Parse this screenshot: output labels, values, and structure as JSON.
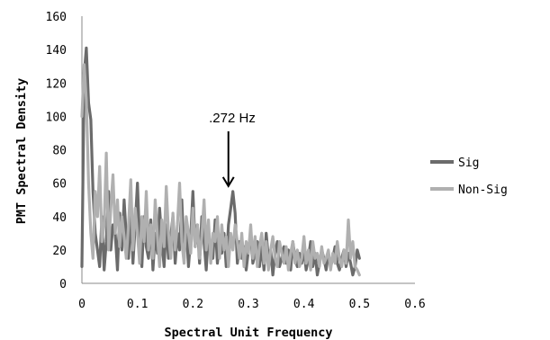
{
  "chart_data": {
    "type": "line",
    "xlabel": "Spectral Unit Frequency",
    "ylabel": "PMT Spectral Density",
    "xlim": [
      0,
      0.6
    ],
    "ylim": [
      0,
      160
    ],
    "x_ticks": [
      "0",
      "0.1",
      "0.2",
      "0.3",
      "0.4",
      "0.5",
      "0.6"
    ],
    "y_ticks": [
      "0",
      "20",
      "40",
      "60",
      "80",
      "100",
      "120",
      "140",
      "160"
    ],
    "grid": false,
    "legend_position": "right",
    "annotation": {
      "text": ".272 Hz",
      "x": 0.272,
      "y": 55
    },
    "series": [
      {
        "name": "Sig",
        "color": "#6b6b6b",
        "x": [
          0,
          0.004,
          0.008,
          0.012,
          0.016,
          0.02,
          0.024,
          0.028,
          0.032,
          0.036,
          0.04,
          0.044,
          0.048,
          0.052,
          0.056,
          0.06,
          0.064,
          0.068,
          0.072,
          0.076,
          0.08,
          0.084,
          0.088,
          0.092,
          0.096,
          0.1,
          0.104,
          0.108,
          0.112,
          0.116,
          0.12,
          0.124,
          0.128,
          0.132,
          0.136,
          0.14,
          0.144,
          0.148,
          0.152,
          0.156,
          0.16,
          0.164,
          0.168,
          0.172,
          0.176,
          0.18,
          0.184,
          0.188,
          0.192,
          0.196,
          0.2,
          0.204,
          0.208,
          0.212,
          0.216,
          0.22,
          0.224,
          0.228,
          0.232,
          0.236,
          0.24,
          0.244,
          0.248,
          0.252,
          0.256,
          0.26,
          0.264,
          0.268,
          0.272,
          0.276,
          0.28,
          0.284,
          0.288,
          0.292,
          0.296,
          0.3,
          0.304,
          0.308,
          0.312,
          0.316,
          0.32,
          0.324,
          0.328,
          0.332,
          0.336,
          0.34,
          0.344,
          0.348,
          0.352,
          0.356,
          0.36,
          0.364,
          0.368,
          0.372,
          0.376,
          0.38,
          0.384,
          0.388,
          0.392,
          0.396,
          0.4,
          0.404,
          0.408,
          0.412,
          0.416,
          0.42,
          0.424,
          0.428,
          0.432,
          0.436,
          0.44,
          0.444,
          0.448,
          0.452,
          0.456,
          0.46,
          0.464,
          0.468,
          0.472,
          0.476,
          0.48,
          0.484,
          0.488,
          0.492,
          0.496,
          0.5
        ],
        "y": [
          10,
          125,
          141,
          108,
          98,
          55,
          30,
          20,
          10,
          40,
          8,
          25,
          55,
          20,
          35,
          30,
          8,
          42,
          20,
          50,
          28,
          15,
          45,
          12,
          35,
          60,
          25,
          10,
          40,
          22,
          15,
          38,
          8,
          30,
          18,
          45,
          25,
          10,
          35,
          15,
          28,
          40,
          12,
          30,
          20,
          50,
          15,
          35,
          10,
          28,
          55,
          22,
          35,
          12,
          40,
          25,
          8,
          30,
          20,
          15,
          38,
          12,
          25,
          18,
          30,
          10,
          35,
          45,
          55,
          42,
          12,
          25,
          15,
          22,
          8,
          20,
          30,
          12,
          18,
          25,
          10,
          22,
          8,
          30,
          15,
          20,
          5,
          18,
          25,
          10,
          15,
          22,
          12,
          20,
          8,
          25,
          15,
          10,
          18,
          12,
          20,
          8,
          15,
          25,
          10,
          18,
          5,
          12,
          20,
          15,
          8,
          18,
          10,
          15,
          22,
          12,
          8,
          15,
          20,
          10,
          18,
          12,
          5,
          10,
          20,
          15
        ]
      },
      {
        "name": "Non-Sig",
        "color": "#b0b0b0",
        "x": [
          0,
          0.004,
          0.008,
          0.012,
          0.016,
          0.02,
          0.024,
          0.028,
          0.032,
          0.036,
          0.04,
          0.044,
          0.048,
          0.052,
          0.056,
          0.06,
          0.064,
          0.068,
          0.072,
          0.076,
          0.08,
          0.084,
          0.088,
          0.092,
          0.096,
          0.1,
          0.104,
          0.108,
          0.112,
          0.116,
          0.12,
          0.124,
          0.128,
          0.132,
          0.136,
          0.14,
          0.144,
          0.148,
          0.152,
          0.156,
          0.16,
          0.164,
          0.168,
          0.172,
          0.176,
          0.18,
          0.184,
          0.188,
          0.192,
          0.196,
          0.2,
          0.204,
          0.208,
          0.212,
          0.216,
          0.22,
          0.224,
          0.228,
          0.232,
          0.236,
          0.24,
          0.244,
          0.248,
          0.252,
          0.256,
          0.26,
          0.264,
          0.268,
          0.272,
          0.276,
          0.28,
          0.284,
          0.288,
          0.292,
          0.296,
          0.3,
          0.304,
          0.308,
          0.312,
          0.316,
          0.32,
          0.324,
          0.328,
          0.332,
          0.336,
          0.34,
          0.344,
          0.348,
          0.352,
          0.356,
          0.36,
          0.364,
          0.368,
          0.372,
          0.376,
          0.38,
          0.384,
          0.388,
          0.392,
          0.396,
          0.4,
          0.404,
          0.408,
          0.412,
          0.416,
          0.42,
          0.424,
          0.428,
          0.432,
          0.436,
          0.44,
          0.444,
          0.448,
          0.452,
          0.456,
          0.46,
          0.464,
          0.468,
          0.472,
          0.476,
          0.48,
          0.484,
          0.488,
          0.492,
          0.496,
          0.5
        ],
        "y": [
          100,
          131,
          110,
          60,
          30,
          15,
          55,
          40,
          70,
          25,
          35,
          78,
          20,
          45,
          65,
          30,
          50,
          22,
          40,
          28,
          15,
          35,
          62,
          20,
          45,
          30,
          12,
          40,
          25,
          55,
          20,
          35,
          15,
          50,
          28,
          10,
          38,
          22,
          58,
          30,
          15,
          42,
          20,
          35,
          60,
          25,
          12,
          40,
          30,
          18,
          45,
          22,
          35,
          15,
          28,
          50,
          20,
          38,
          12,
          30,
          25,
          40,
          15,
          35,
          20,
          28,
          10,
          30,
          20,
          35,
          25,
          15,
          30,
          10,
          25,
          18,
          35,
          15,
          28,
          10,
          22,
          30,
          12,
          25,
          8,
          20,
          28,
          15,
          10,
          25,
          18,
          12,
          22,
          8,
          18,
          25,
          12,
          20,
          10,
          15,
          28,
          12,
          20,
          8,
          25,
          15,
          18,
          10,
          22,
          12,
          15,
          20,
          8,
          18,
          12,
          25,
          15,
          10,
          20,
          12,
          38,
          15,
          25,
          10,
          8,
          5
        ]
      }
    ]
  }
}
